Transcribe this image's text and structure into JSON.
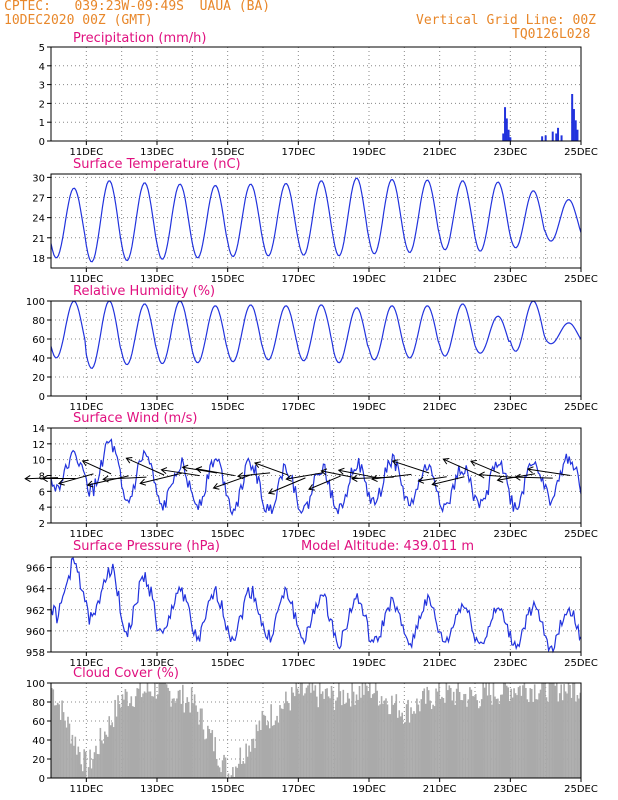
{
  "header": {
    "line1": "CPTEC:   039:23W-09:49S  UAUA (BA)",
    "line2": "10DEC2020 00Z (GMT)",
    "right1": "Vertical Grid Line: 00Z",
    "right2": "TQ0126L028"
  },
  "colors": {
    "header": "#e8872a",
    "title": "#e0107f",
    "series": "#2233dd",
    "cloud": "#aaaaaa",
    "vector": "#000000"
  },
  "x_tick_labels": [
    "11DEC",
    "13DEC",
    "15DEC",
    "17DEC",
    "19DEC",
    "21DEC",
    "23DEC",
    "25DEC"
  ],
  "chart_data": [
    {
      "type": "bar",
      "title": "Precipitation (mm/h)",
      "ylim": [
        0,
        5
      ],
      "yticks": [
        0,
        1,
        2,
        3,
        4,
        5
      ],
      "x_unit": "days since 10DEC2020 00Z",
      "xlim": [
        0,
        15
      ],
      "series": [
        {
          "points": [
            [
              12.8,
              0.4
            ],
            [
              12.85,
              1.8
            ],
            [
              12.9,
              1.2
            ],
            [
              12.95,
              0.6
            ],
            [
              13.0,
              0.2
            ],
            [
              13.9,
              0.25
            ],
            [
              14.0,
              0.3
            ],
            [
              14.2,
              0.5
            ],
            [
              14.3,
              0.4
            ],
            [
              14.35,
              0.7
            ],
            [
              14.45,
              0.3
            ],
            [
              14.75,
              2.5
            ],
            [
              14.8,
              1.7
            ],
            [
              14.85,
              1.1
            ],
            [
              14.9,
              0.6
            ]
          ]
        }
      ],
      "grid": true
    },
    {
      "type": "line",
      "title": "Surface Temperature (nC)",
      "ylim": [
        16.5,
        30.5
      ],
      "yticks": [
        18,
        21,
        24,
        27,
        30
      ],
      "daily_min": [
        18.0,
        17.4,
        17.6,
        17.8,
        18.0,
        18.2,
        18.3,
        18.4,
        18.3,
        18.6,
        18.8,
        19.2,
        19.0,
        19.5,
        20.5
      ],
      "daily_max": [
        28.4,
        29.5,
        29.2,
        29.0,
        28.8,
        29.0,
        29.1,
        29.5,
        29.9,
        29.7,
        29.6,
        29.5,
        29.3,
        28.0,
        26.7
      ],
      "grid": true
    },
    {
      "type": "line",
      "title": "Relative Humidity (%)",
      "ylim": [
        0,
        100
      ],
      "yticks": [
        0,
        20,
        40,
        60,
        80,
        100
      ],
      "daily_max": [
        100,
        100,
        97,
        100,
        95,
        96,
        95,
        96,
        93,
        95,
        95,
        97,
        84,
        100,
        77
      ],
      "daily_min": [
        40,
        29,
        33,
        34,
        35,
        36,
        38,
        37,
        35,
        38,
        40,
        42,
        45,
        47,
        55
      ],
      "grid": true
    },
    {
      "type": "line",
      "title": "Surface Wind (m/s)",
      "ylim": [
        2,
        14
      ],
      "yticks": [
        2,
        4,
        6,
        8,
        10,
        12,
        14
      ],
      "daily_max": [
        10.5,
        12.0,
        10.5,
        9.5,
        10.0,
        9.5,
        9.0,
        9.0,
        9.5,
        10.0,
        9.0,
        9.0,
        10.0,
        10.0,
        10.5
      ],
      "daily_min": [
        6.5,
        6.0,
        4.5,
        4.0,
        4.5,
        4.0,
        3.5,
        3.5,
        4.0,
        4.5,
        4.5,
        4.0,
        4.0,
        4.0,
        5.0
      ],
      "vector_labels": "wind direction arrows",
      "grid": true
    },
    {
      "type": "line",
      "title": "Surface Pressure (hPa)",
      "annotation": "Model Altitude: 439.011 m",
      "ylim": [
        958,
        967
      ],
      "yticks": [
        958,
        960,
        962,
        964,
        966
      ],
      "daily_max": [
        966.2,
        966.0,
        965.0,
        964.0,
        963.5,
        963.8,
        963.5,
        963.2,
        963.0,
        962.6,
        962.8,
        962.4,
        962.0,
        962.2,
        962.0
      ],
      "daily_min": [
        961.5,
        961.0,
        960.0,
        959.5,
        959.3,
        959.5,
        959.4,
        959.3,
        959.0,
        958.8,
        959.0,
        959.0,
        958.8,
        958.7,
        958.5
      ],
      "grid": true
    },
    {
      "type": "bar",
      "title": "Cloud Cover (%)",
      "ylim": [
        0,
        100
      ],
      "yticks": [
        0,
        20,
        40,
        60,
        80,
        100
      ],
      "daily_pattern": [
        95,
        10,
        85,
        95,
        80,
        5,
        60,
        90,
        85,
        95,
        70,
        90,
        85,
        95,
        95
      ],
      "grid": true
    }
  ]
}
